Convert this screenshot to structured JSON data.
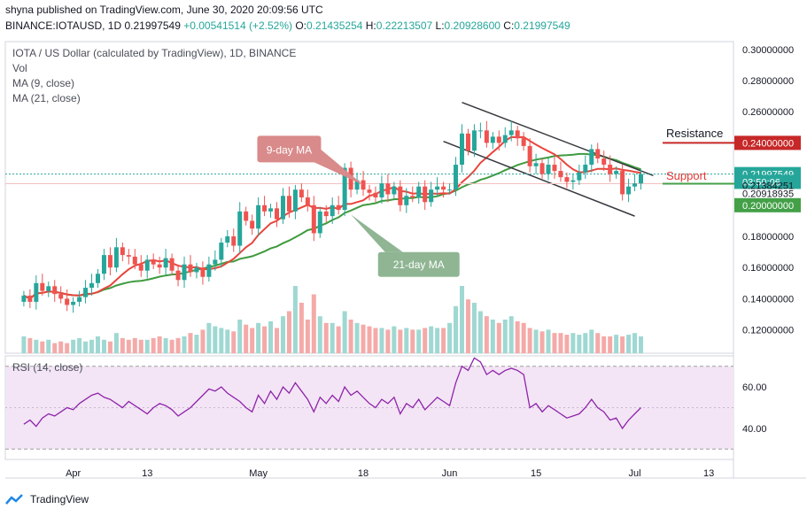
{
  "header": {
    "line1": "shyna published on TradingView.com, June 30, 2020 20:09:56 UTC",
    "symbol": "BINANCE:IOTAUSD, 1D",
    "last": "0.21997549",
    "change": "+0.00541514 (+2.52%)",
    "o_label": "O:",
    "o_value": "0.21435254",
    "h_label": "H:",
    "h_value": "0.22213507",
    "l_label": "L:",
    "l_value": "0.20928600",
    "c_label": "C:",
    "c_value": "0.21997549"
  },
  "legend": {
    "title": "IOTA / US Dollar (calculated by TradingView), 1D, BINANCE",
    "vol": "Vol",
    "ma9": "MA (9, close)",
    "ma21": "MA (21, close)",
    "rsi": "RSI (14, close)"
  },
  "annotations": {
    "ma9_callout": "9-day MA",
    "ma21_callout": "21-day MA",
    "resistance": "Resistance",
    "support": "Support"
  },
  "price_axis": {
    "ticks": [
      "0.30000000",
      "0.28000000",
      "0.26000000",
      "0.24000000",
      "0.22000000",
      "0.20000000",
      "0.18000000",
      "0.16000000",
      "0.14000000",
      "0.12000000"
    ],
    "markers": [
      {
        "text": "0.24000000",
        "color": "#c62828"
      },
      {
        "text": "0.21997549",
        "color": "#26a69a"
      },
      {
        "text": "03:50:06",
        "color": "#26a69a"
      },
      {
        "text": "0.21384251",
        "color": "#ffffff"
      },
      {
        "text": "0.20918935",
        "color": "#ffffff"
      },
      {
        "text": "0.20000000",
        "color": "#43a047"
      }
    ]
  },
  "rsi_axis": {
    "ticks": [
      "60.00",
      "40.00"
    ]
  },
  "time_axis": {
    "labels": [
      "Apr",
      "13",
      "May",
      "18",
      "Jun",
      "15",
      "Jul",
      "13"
    ]
  },
  "footer": {
    "brand": "TradingView"
  },
  "colors": {
    "up": "#26a69a",
    "down": "#ef5350",
    "ma9": "#e8453c",
    "ma21": "#3f9b3f",
    "rsi": "#8e24aa",
    "rsi_band": "#f3e5f5"
  },
  "chart_data": {
    "type": "candlestick",
    "title": "IOTA / US Dollar (calculated by TradingView), 1D, BINANCE",
    "ylim": [
      0.105,
      0.305
    ],
    "x_range": [
      "2020-03-21",
      "2020-07-17"
    ],
    "closes": [
      0.142,
      0.138,
      0.15,
      0.145,
      0.148,
      0.143,
      0.14,
      0.136,
      0.138,
      0.141,
      0.147,
      0.15,
      0.156,
      0.168,
      0.16,
      0.173,
      0.168,
      0.167,
      0.162,
      0.158,
      0.165,
      0.162,
      0.16,
      0.166,
      0.158,
      0.152,
      0.162,
      0.157,
      0.16,
      0.154,
      0.162,
      0.165,
      0.176,
      0.18,
      0.174,
      0.196,
      0.19,
      0.185,
      0.2,
      0.196,
      0.198,
      0.191,
      0.206,
      0.196,
      0.21,
      0.205,
      0.2,
      0.182,
      0.196,
      0.193,
      0.2,
      0.197,
      0.224,
      0.21,
      0.216,
      0.21,
      0.208,
      0.205,
      0.214,
      0.207,
      0.212,
      0.2,
      0.206,
      0.205,
      0.212,
      0.202,
      0.21,
      0.212,
      0.21,
      0.21,
      0.226,
      0.246,
      0.235,
      0.248,
      0.248,
      0.24,
      0.244,
      0.24,
      0.245,
      0.248,
      0.243,
      0.238,
      0.225,
      0.227,
      0.22,
      0.226,
      0.222,
      0.218,
      0.215,
      0.216,
      0.221,
      0.226,
      0.236,
      0.23,
      0.226,
      0.22,
      0.222,
      0.207,
      0.212,
      0.214,
      0.22
    ],
    "rsi": [
      42,
      44,
      41,
      45,
      47,
      46,
      48,
      50,
      49,
      52,
      54,
      56,
      57,
      55,
      54,
      52,
      50,
      53,
      51,
      49,
      47,
      50,
      52,
      51,
      49,
      46,
      48,
      50,
      53,
      56,
      59,
      58,
      60,
      57,
      55,
      53,
      50,
      48,
      56,
      52,
      58,
      54,
      60,
      57,
      62,
      58,
      54,
      48,
      55,
      52,
      56,
      53,
      60,
      56,
      58,
      55,
      52,
      50,
      54,
      52,
      55,
      47,
      52,
      50,
      54,
      49,
      52,
      55,
      53,
      51,
      62,
      70,
      68,
      74,
      72,
      66,
      68,
      66,
      68,
      69,
      68,
      66,
      50,
      52,
      48,
      51,
      49,
      47,
      45,
      46,
      47,
      50,
      54,
      50,
      48,
      44,
      45,
      40,
      44,
      47,
      50
    ],
    "volume": [
      10,
      9,
      8,
      7,
      8,
      6,
      7,
      6,
      8,
      9,
      7,
      8,
      10,
      8,
      7,
      12,
      9,
      8,
      9,
      8,
      8,
      9,
      10,
      9,
      8,
      9,
      10,
      12,
      11,
      14,
      18,
      16,
      15,
      14,
      13,
      20,
      17,
      15,
      18,
      16,
      19,
      15,
      22,
      25,
      40,
      30,
      20,
      35,
      22,
      18,
      18,
      16,
      25,
      20,
      18,
      17,
      16,
      15,
      15,
      14,
      16,
      14,
      15,
      14,
      14,
      15,
      16,
      15,
      15,
      18,
      28,
      40,
      32,
      30,
      25,
      22,
      20,
      18,
      20,
      22,
      19,
      18,
      15,
      14,
      13,
      14,
      12,
      12,
      11,
      12,
      11,
      12,
      14,
      12,
      10,
      10,
      11,
      10,
      11,
      12,
      10
    ],
    "trendlines": [
      {
        "name": "upper",
        "from": [
          "2020-06-03",
          0.266
        ],
        "to": [
          "2020-07-04",
          0.219
        ]
      },
      {
        "name": "lower",
        "from": [
          "2020-05-31",
          0.241
        ],
        "to": [
          "2020-07-01",
          0.193
        ]
      }
    ],
    "levels": {
      "resistance": 0.24,
      "support": 0.2
    }
  }
}
